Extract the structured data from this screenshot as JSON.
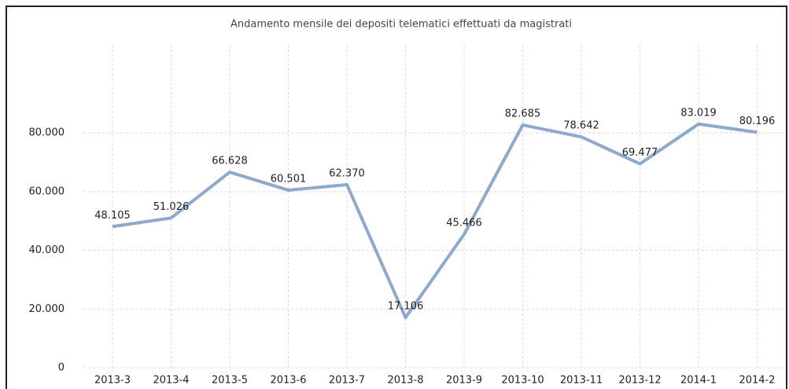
{
  "chart_data": {
    "type": "line",
    "title": "Andamento mensile dei depositi telematici effettuati da magistrati",
    "categories": [
      "2013-3",
      "2013-4",
      "2013-5",
      "2013-6",
      "2013-7",
      "2013-8",
      "2013-9",
      "2013-10",
      "2013-11",
      "2013-12",
      "2014-1",
      "2014-2"
    ],
    "values": [
      48105,
      51026,
      66628,
      60501,
      62370,
      17106,
      45466,
      82685,
      78642,
      69477,
      83019,
      80196
    ],
    "value_labels": [
      "48.105",
      "51.026",
      "66.628",
      "60.501",
      "62.370",
      "17.106",
      "45.466",
      "82.685",
      "78.642",
      "69.477",
      "83.019",
      "80.196"
    ],
    "color": "#8ea9cc",
    "ylim": [
      0,
      110000
    ],
    "yticks": [
      0,
      {
        "value": 20000,
        "label": "20.000"
      },
      {
        "value": 40000,
        "label": "40.000"
      },
      {
        "value": 60000,
        "label": "60.000"
      },
      {
        "value": 80000,
        "label": "80.000"
      }
    ],
    "grid": true
  }
}
